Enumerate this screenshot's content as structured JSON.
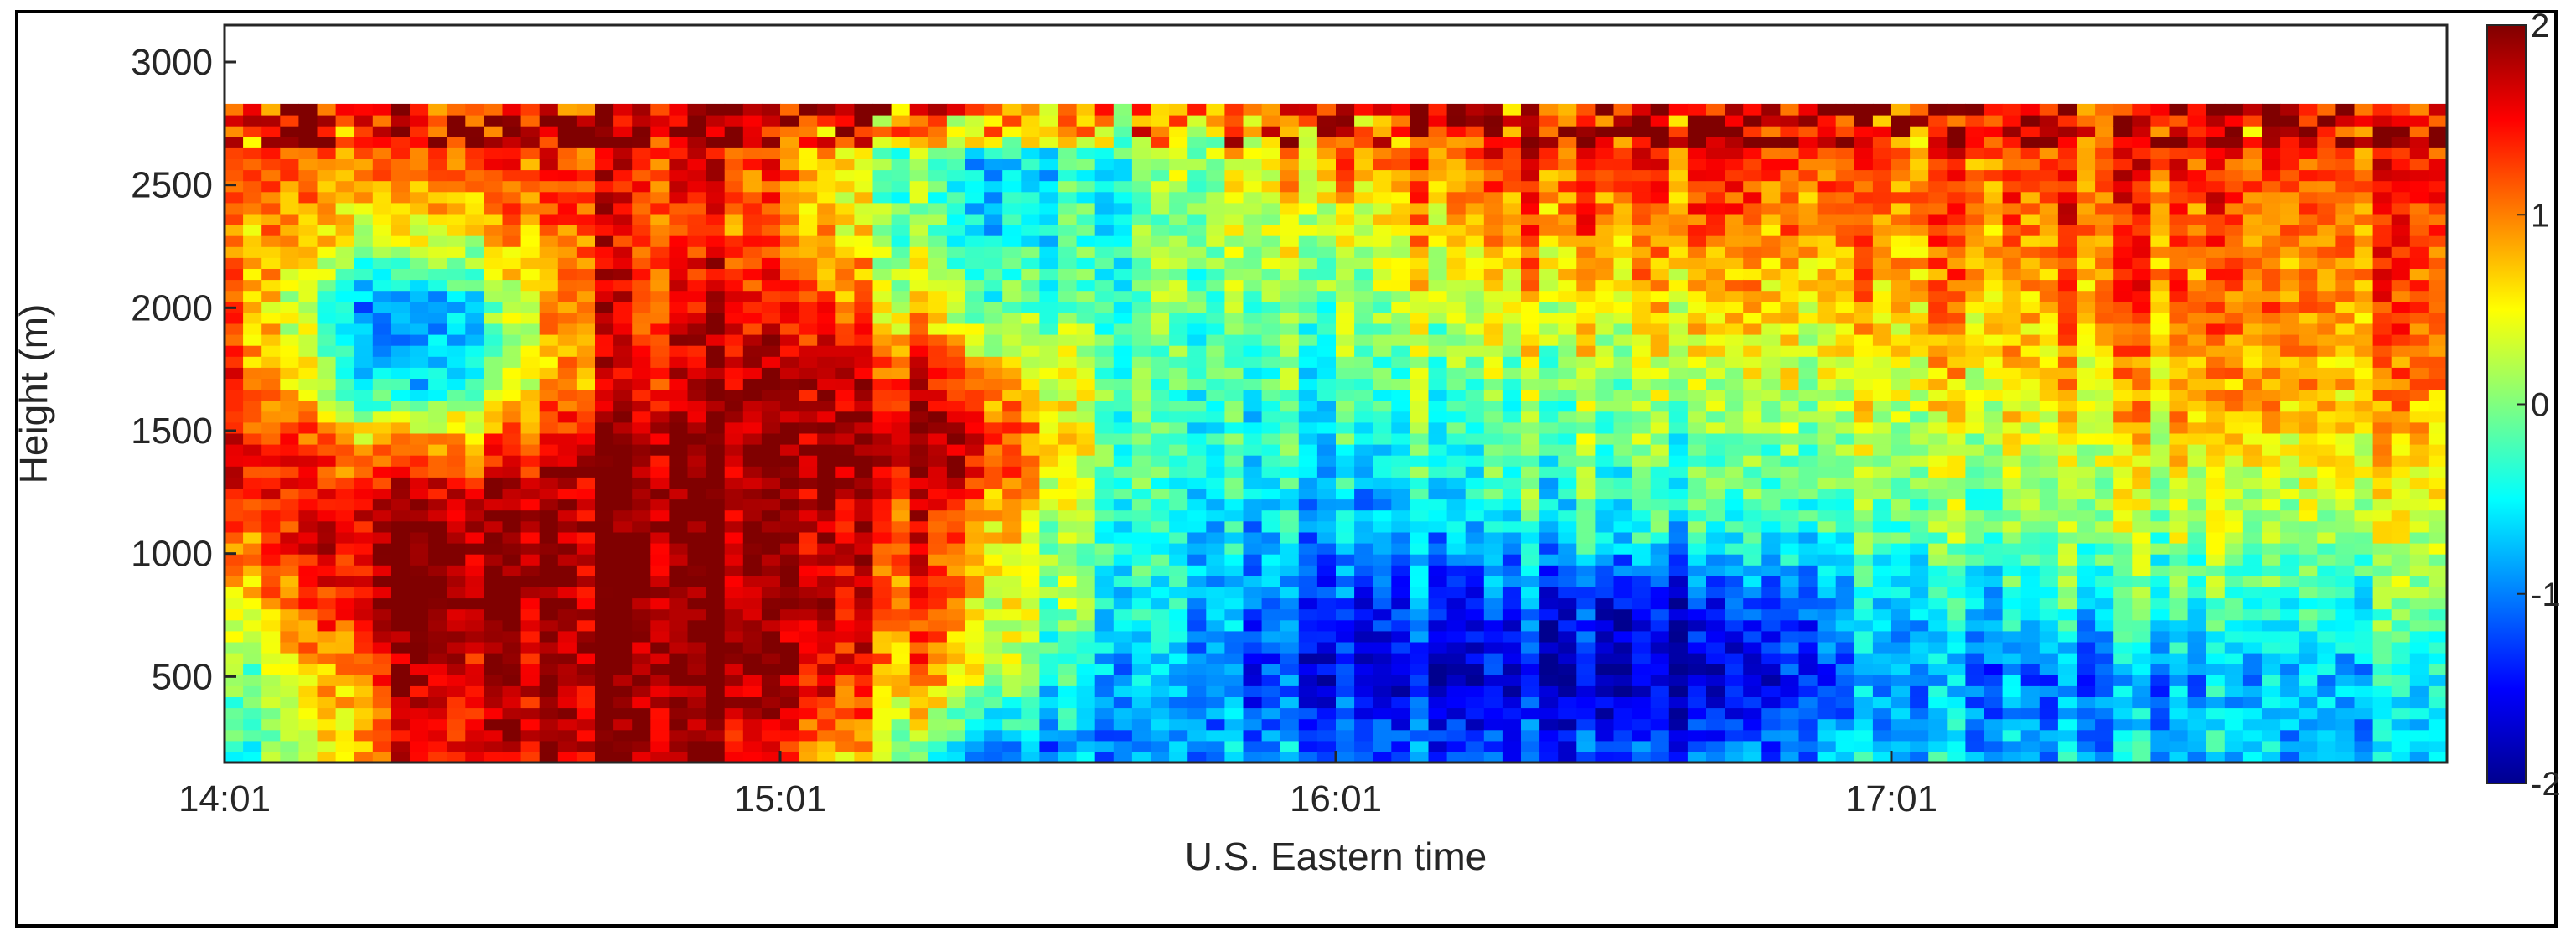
{
  "chart_data": {
    "type": "heatmap",
    "title": "",
    "xlabel": "U.S. Eastern time",
    "ylabel": "Height (m)",
    "x_tick_labels": [
      "14:01",
      "15:01",
      "16:01",
      "17:01"
    ],
    "x_tick_minutes": [
      0,
      60,
      120,
      180
    ],
    "x_range_minutes": [
      0,
      240
    ],
    "y_ticks": [
      500,
      1000,
      1500,
      2000,
      2500,
      3000
    ],
    "y_range": [
      150,
      3150
    ],
    "data_height_range": [
      150,
      2830
    ],
    "grid": false,
    "colormap": "jet",
    "colors": {
      "jet_stops": [
        "#00008f",
        "#0000ff",
        "#00ffff",
        "#ffff00",
        "#ff0000",
        "#800000"
      ],
      "axis": "#262626",
      "gap": "#ffffff"
    },
    "colorbar": {
      "position": "right",
      "range": [
        -2,
        2
      ],
      "tick_values": [
        2,
        1,
        0,
        -1,
        -2
      ],
      "tick_labels": [
        "2",
        "1",
        "0",
        "-1",
        "-2"
      ]
    },
    "time_grid_minutes": [
      0,
      20,
      40,
      60,
      80,
      100,
      120,
      140,
      160,
      180,
      200,
      220,
      240
    ],
    "height_grid_m": [
      200,
      500,
      800,
      1100,
      1400,
      1700,
      2000,
      2300,
      2600,
      2800
    ],
    "values": [
      [
        -0.6,
        1.4,
        2.0,
        1.6,
        -0.8,
        -1.0,
        -0.9,
        -1.3,
        -1.2,
        -0.6,
        -0.8,
        -0.6,
        -0.9
      ],
      [
        -0.2,
        1.5,
        2.0,
        2.0,
        0.5,
        -1.0,
        -1.5,
        -1.7,
        -1.9,
        -0.9,
        -1.0,
        -0.7,
        -0.6
      ],
      [
        0.4,
        2.0,
        2.0,
        2.0,
        0.8,
        -0.7,
        -1.2,
        -1.3,
        -1.5,
        -0.6,
        -0.4,
        -0.3,
        -0.2
      ],
      [
        1.1,
        2.0,
        2.0,
        2.0,
        1.0,
        -0.6,
        -0.8,
        -0.5,
        -0.4,
        -0.2,
        0.1,
        0.2,
        0.2
      ],
      [
        1.6,
        0.9,
        2.0,
        2.0,
        1.8,
        -0.5,
        -0.4,
        -0.2,
        -0.1,
        0.1,
        0.4,
        0.6,
        0.5
      ],
      [
        1.4,
        -1.0,
        1.3,
        2.0,
        1.2,
        -0.4,
        -0.2,
        0.1,
        0.2,
        0.4,
        0.7,
        0.9,
        0.8
      ],
      [
        1.2,
        -1.5,
        1.5,
        1.6,
        0.0,
        -0.3,
        0.1,
        0.5,
        0.6,
        0.7,
        1.0,
        1.1,
        1.0
      ],
      [
        1.0,
        0.3,
        1.4,
        1.2,
        -0.5,
        -0.3,
        0.5,
        0.9,
        1.0,
        0.9,
        1.2,
        1.1,
        1.1
      ],
      [
        1.2,
        1.0,
        1.5,
        1.3,
        -0.7,
        -0.2,
        1.0,
        1.3,
        1.4,
        1.1,
        1.4,
        1.3,
        1.2
      ],
      [
        1.3,
        1.3,
        1.6,
        1.5,
        0.8,
        0.6,
        1.2,
        1.4,
        1.5,
        1.3,
        1.5,
        1.4,
        1.3
      ]
    ]
  }
}
